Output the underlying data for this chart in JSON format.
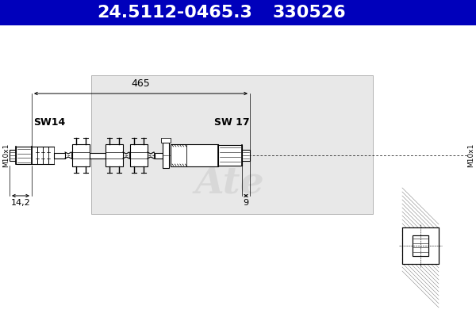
{
  "title_text1": "24.5112-0465.3",
  "title_text2": "330526",
  "title_bg": "#0000BB",
  "title_fg": "#FFFFFF",
  "title_fontsize": 16,
  "bg_color": "#FFFFFF",
  "diagram_bg": "#E8E8E8",
  "line_color": "#000000",
  "label_sw14": "SW14",
  "label_sw17": "SW 17",
  "label_m10x1_left": "M10x1",
  "label_m10x1_right": "M10x1",
  "label_465": "465",
  "label_14_2": "14,2",
  "label_9": "9"
}
